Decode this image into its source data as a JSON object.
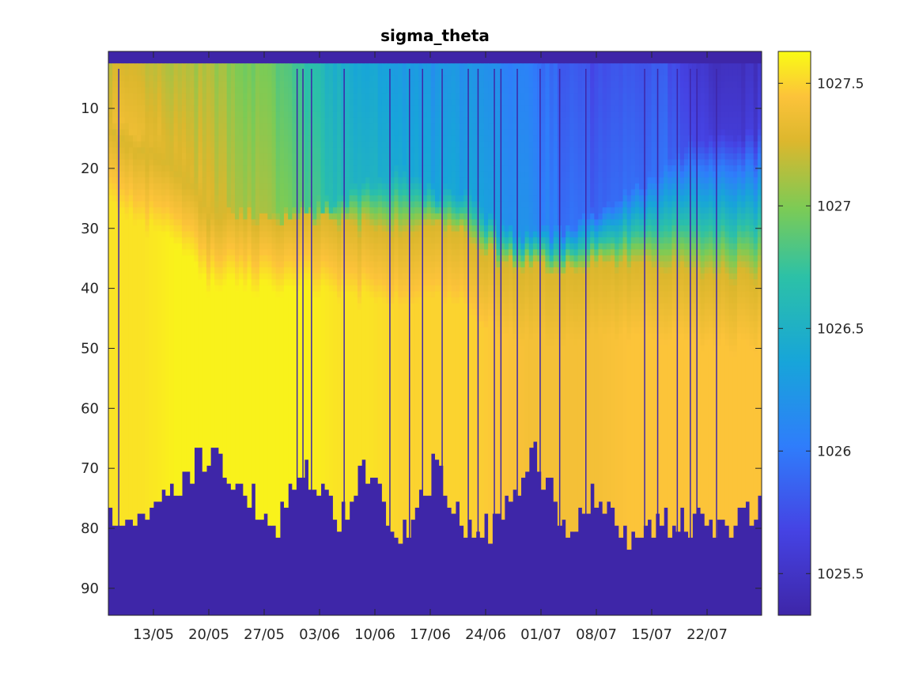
{
  "chart_data": {
    "type": "heatmap",
    "title": "sigma_theta",
    "xlabel": "",
    "ylabel": "",
    "y_direction": "reversed",
    "xlim_days_label": [
      "08/05",
      "29/07"
    ],
    "x_ticks": [
      "13/05",
      "20/05",
      "27/05",
      "03/06",
      "10/06",
      "17/06",
      "24/06",
      "01/07",
      "08/07",
      "15/07",
      "22/07"
    ],
    "y_ticks": [
      10,
      20,
      30,
      40,
      50,
      60,
      70,
      80,
      90
    ],
    "ylim": [
      0.5,
      94.5
    ],
    "colorbar": {
      "ticks": [
        "1025.5",
        "1026",
        "1026.5",
        "1027",
        "1027.5"
      ],
      "tick_values": [
        1025.5,
        1026,
        1026.5,
        1027,
        1027.5
      ],
      "range": [
        1025.33,
        1027.63
      ],
      "colormap": "parula"
    },
    "grid": false,
    "dates": [
      "08/05",
      "12/05",
      "16/05",
      "20/05",
      "24/05",
      "28/05",
      "01/06",
      "05/06",
      "09/06",
      "13/06",
      "17/06",
      "21/06",
      "25/06",
      "29/06",
      "03/07",
      "07/07",
      "11/07",
      "15/07",
      "19/07",
      "23/07",
      "27/07"
    ],
    "profiles": {
      "surface_density": [
        1027.2,
        1027.15,
        1027.1,
        1027.1,
        1027.0,
        1026.9,
        1026.7,
        1026.45,
        1026.35,
        1026.25,
        1026.2,
        1026.2,
        1026.1,
        1026.0,
        1025.8,
        1025.7,
        1025.8,
        1025.8,
        1025.5,
        1025.45,
        1025.45
      ],
      "mixed_layer_depth": [
        12,
        14,
        16,
        24,
        27,
        28,
        27,
        25,
        22,
        20,
        24,
        24,
        30,
        31,
        30,
        27,
        24,
        20,
        15,
        14,
        14
      ],
      "pycnocline_depth": [
        14,
        18,
        20,
        28,
        28,
        28,
        28,
        30,
        30,
        30,
        30,
        31,
        36,
        37,
        37,
        36,
        36,
        36,
        37,
        38,
        38
      ],
      "bottom_layer_density": [
        1027.55,
        1027.55,
        1027.6,
        1027.6,
        1027.6,
        1027.6,
        1027.6,
        1027.55,
        1027.55,
        1027.5,
        1027.5,
        1027.5,
        1027.45,
        1027.4,
        1027.4,
        1027.4,
        1027.45,
        1027.45,
        1027.45,
        1027.45,
        1027.45
      ],
      "max_valid_depth": [
        78,
        79,
        74,
        67,
        72,
        80,
        70,
        79,
        69,
        82,
        70,
        81,
        79,
        67,
        80,
        74,
        83,
        79,
        79,
        79,
        77
      ]
    },
    "missing_value_color": "#3e26a8"
  }
}
